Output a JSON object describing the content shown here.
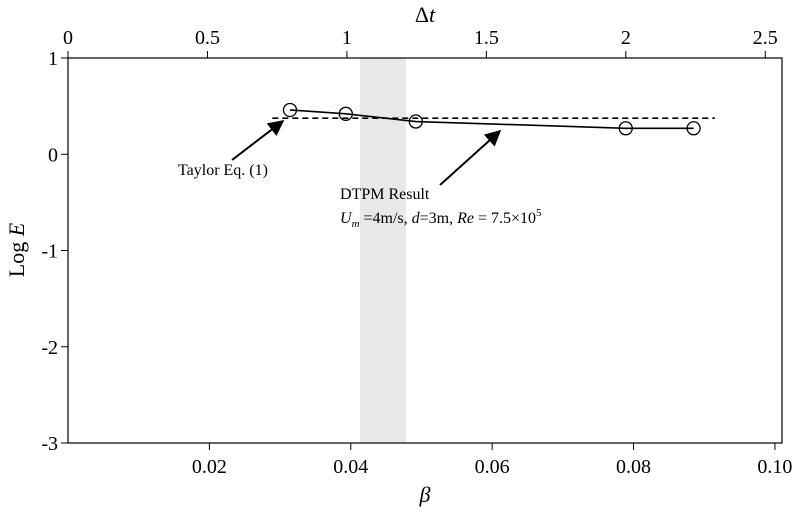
{
  "chart_data": {
    "type": "line",
    "xlabel": "β",
    "x2label": [
      "Δ",
      "t"
    ],
    "ylabel": [
      "Log ",
      "E"
    ],
    "xlim": [
      0,
      0.101
    ],
    "xticks": [
      0.02,
      0.04,
      0.06,
      0.08,
      {
        "value": 0.1,
        "label": "0.10"
      }
    ],
    "x2lim": [
      0,
      2.56
    ],
    "x2ticks": [
      0,
      0.5,
      1,
      1.5,
      2,
      2.5
    ],
    "ylim": [
      -3,
      1
    ],
    "yticks": [
      1,
      0,
      -1,
      -2,
      -3
    ],
    "shaded_band": [
      0.0413,
      0.0478
    ],
    "series": [
      {
        "color": "#000000",
        "style": "solid",
        "markers": true,
        "x": [
          0.0314,
          0.0393,
          0.0492,
          0.0789,
          0.0885
        ],
        "values": [
          0.46,
          0.42,
          0.34,
          0.27,
          0.27
        ]
      },
      {
        "color": "#000000",
        "style": "dashed",
        "markers": false,
        "x": [
          0.0289,
          0.0915
        ],
        "values": [
          0.375,
          0.375
        ]
      }
    ],
    "annotations": [
      {
        "text": [
          "Taylor Eq. (1)"
        ]
      },
      {
        "text": [
          "DTPM Result"
        ]
      },
      {
        "text": [
          "U",
          "m",
          " =4m/s, ",
          "d",
          "=3m, ",
          "Re",
          " = 7.5×10",
          "5"
        ]
      }
    ]
  }
}
